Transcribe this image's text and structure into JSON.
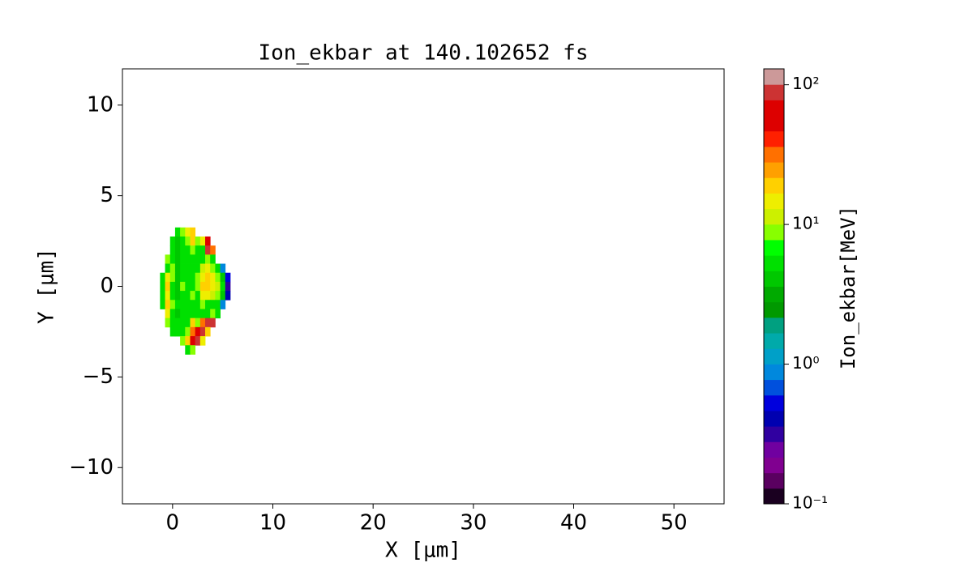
{
  "chart_data": {
    "type": "heatmap",
    "title": "Ion_ekbar at 140.102652 fs",
    "x_label": "X [μm]",
    "y_label": "Y [μm]",
    "colorbar_label": "Ion_ekbar[MeV]",
    "xlim": [
      -5,
      55
    ],
    "xticks": [
      0,
      10,
      20,
      30,
      40,
      50
    ],
    "ylim": [
      -12,
      12
    ],
    "yticks": [
      {
        "value": -10,
        "label": "−10"
      },
      {
        "value": -5,
        "label": "−5"
      },
      0,
      5,
      10
    ],
    "clim": [
      0.1,
      130
    ],
    "clog": true,
    "cticks": [
      {
        "value": 0.1,
        "label": "10⁻¹"
      },
      {
        "value": 1,
        "label": "10⁰"
      },
      {
        "value": 10,
        "label": "10¹"
      },
      {
        "value": 100,
        "label": "10²"
      }
    ],
    "cell": [
      0.5,
      0.5
    ],
    "x": [
      -1,
      -0.5,
      0,
      0.5,
      1,
      1.5,
      2,
      2.5,
      3,
      3.5,
      4,
      4.5,
      5,
      5.5
    ],
    "y": [
      3,
      2.5,
      2,
      1.5,
      1,
      0.5,
      0,
      -0.5,
      -1,
      -1.5,
      -2,
      -2.5,
      -3,
      -3.5
    ],
    "values": [
      [
        null,
        null,
        null,
        6,
        8,
        15,
        20,
        null,
        null,
        null,
        null,
        null,
        null,
        null
      ],
      [
        null,
        null,
        5,
        4,
        6,
        10,
        20,
        8,
        15,
        60,
        null,
        null,
        null,
        null
      ],
      [
        null,
        null,
        6,
        4,
        5,
        6,
        8,
        5,
        6,
        80,
        30,
        null,
        null,
        null
      ],
      [
        null,
        8,
        5,
        4,
        5,
        6,
        5,
        5,
        6,
        8,
        6,
        null,
        null,
        null
      ],
      [
        null,
        6,
        8,
        4,
        6,
        5,
        5,
        6,
        12,
        15,
        10,
        5,
        1,
        null
      ],
      [
        5,
        15,
        8,
        4,
        6,
        5,
        6,
        8,
        15,
        20,
        15,
        10,
        4,
        0.5
      ],
      [
        6,
        20,
        6,
        4,
        8,
        5,
        6,
        10,
        20,
        20,
        15,
        12,
        5,
        0.3
      ],
      [
        5,
        15,
        6,
        4,
        6,
        5,
        8,
        6,
        15,
        15,
        12,
        10,
        4,
        0.4
      ],
      [
        6,
        20,
        8,
        5,
        6,
        5,
        6,
        5,
        8,
        6,
        6,
        5,
        1,
        null
      ],
      [
        null,
        15,
        6,
        4,
        5,
        6,
        6,
        5,
        6,
        5,
        10,
        5,
        null,
        null
      ],
      [
        null,
        8,
        6,
        5,
        5,
        6,
        20,
        10,
        30,
        80,
        80,
        null,
        null,
        null
      ],
      [
        null,
        null,
        6,
        5,
        6,
        10,
        30,
        60,
        80,
        20,
        null,
        null,
        null,
        null
      ],
      [
        null,
        null,
        null,
        null,
        8,
        20,
        60,
        80,
        15,
        null,
        null,
        null,
        null,
        null
      ],
      [
        null,
        null,
        null,
        null,
        null,
        6,
        8,
        null,
        null,
        null,
        null,
        null,
        null,
        null
      ]
    ],
    "colors": [
      "#1a0020",
      "#5a0060",
      "#800090",
      "#7000a0",
      "#3000a0",
      "#0000b0",
      "#0000dd",
      "#0050dd",
      "#0088dd",
      "#00a0c8",
      "#00aaaa",
      "#00a080",
      "#009900",
      "#00aa00",
      "#00c800",
      "#00e000",
      "#00ff00",
      "#88ff00",
      "#ccf000",
      "#eeee00",
      "#ffd000",
      "#ffa000",
      "#ff7000",
      "#ff2000",
      "#dd0000",
      "#dd0000",
      "#cc3333",
      "#cc9999"
    ]
  }
}
